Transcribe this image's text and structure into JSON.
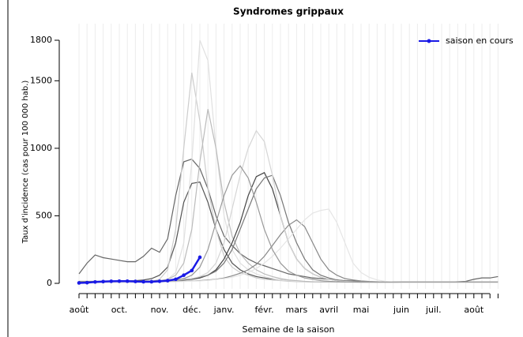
{
  "chart_data": {
    "type": "line",
    "title": "Syndromes grippaux",
    "x_label": "Semaine de la saison",
    "y_label": "Taux d'incidence (cas pour 100 000 hab.)",
    "categories": [
      "août",
      null,
      null,
      null,
      null,
      "oct.",
      null,
      null,
      null,
      null,
      "nov.",
      null,
      null,
      null,
      "déc.",
      null,
      null,
      null,
      "janv.",
      null,
      null,
      null,
      null,
      "févr.",
      null,
      null,
      null,
      "mars",
      null,
      null,
      null,
      "avril",
      null,
      null,
      null,
      "mai",
      null,
      null,
      null,
      null,
      "juin",
      null,
      null,
      null,
      "juil.",
      null,
      null,
      null,
      null,
      "août",
      null,
      null,
      null
    ],
    "ylim": [
      0,
      1800
    ],
    "yticks": [
      0,
      500,
      1000,
      1500,
      1800
    ],
    "grid": true,
    "legend": "top-right",
    "series": [
      {
        "color": "#666666",
        "values": [
          70,
          150,
          210,
          190,
          180,
          170,
          160,
          160,
          200,
          260,
          230,
          330,
          650,
          900,
          920,
          850,
          700,
          500,
          350,
          280,
          220,
          180,
          150,
          130,
          110,
          90,
          70,
          60,
          50,
          40,
          35,
          30,
          25,
          20,
          18,
          15,
          12,
          10,
          10,
          10,
          10,
          10,
          10,
          10,
          10,
          10,
          10,
          12,
          15,
          30,
          40,
          40,
          50
        ]
      },
      {
        "color": "#555555",
        "values": [
          10,
          10,
          12,
          14,
          15,
          16,
          18,
          20,
          25,
          35,
          60,
          120,
          300,
          600,
          740,
          750,
          600,
          400,
          250,
          150,
          100,
          70,
          50,
          40,
          30,
          25,
          20,
          15,
          12,
          10,
          10,
          10,
          10,
          10,
          10,
          8,
          8,
          8,
          8,
          8,
          8,
          8,
          8,
          8,
          8,
          8,
          8,
          8,
          8,
          8,
          8,
          8,
          8
        ]
      },
      {
        "color": "#cccccc",
        "values": [
          5,
          5,
          6,
          6,
          7,
          8,
          9,
          10,
          12,
          15,
          30,
          100,
          400,
          1000,
          1560,
          1200,
          700,
          400,
          200,
          120,
          80,
          60,
          40,
          30,
          25,
          20,
          15,
          12,
          10,
          10,
          10,
          10,
          10,
          10,
          8,
          8,
          8,
          8,
          8,
          8,
          8,
          8,
          8,
          8,
          8,
          8,
          8,
          8,
          8,
          8,
          8,
          8,
          8
        ]
      },
      {
        "color": "#e0e0e0",
        "values": [
          5,
          5,
          5,
          6,
          6,
          7,
          8,
          9,
          10,
          12,
          15,
          30,
          80,
          300,
          900,
          1800,
          1650,
          1000,
          500,
          250,
          150,
          100,
          70,
          50,
          35,
          25,
          20,
          15,
          12,
          10,
          10,
          10,
          10,
          10,
          10,
          8,
          8,
          8,
          8,
          8,
          8,
          8,
          8,
          8,
          8,
          8,
          8,
          8,
          8,
          8,
          8,
          8,
          8
        ]
      },
      {
        "color": "#bbbbbb",
        "values": [
          8,
          8,
          8,
          9,
          10,
          10,
          11,
          12,
          14,
          16,
          20,
          30,
          60,
          150,
          400,
          900,
          1290,
          1000,
          600,
          350,
          220,
          150,
          100,
          70,
          50,
          35,
          25,
          20,
          15,
          12,
          10,
          10,
          10,
          10,
          10,
          10,
          10,
          8,
          8,
          8,
          8,
          8,
          8,
          8,
          8,
          8,
          8,
          8,
          8,
          8,
          8,
          8,
          8
        ]
      },
      {
        "color": "#444444",
        "values": [
          10,
          10,
          10,
          10,
          10,
          11,
          12,
          13,
          14,
          15,
          16,
          18,
          20,
          25,
          30,
          40,
          60,
          100,
          180,
          300,
          450,
          650,
          790,
          820,
          700,
          500,
          300,
          180,
          110,
          70,
          45,
          30,
          20,
          15,
          12,
          10,
          10,
          10,
          10,
          10,
          10,
          10,
          10,
          10,
          10,
          10,
          10,
          10,
          10,
          10,
          10,
          10,
          10
        ]
      },
      {
        "color": "#777777",
        "values": [
          15,
          15,
          15,
          15,
          15,
          15,
          15,
          16,
          17,
          18,
          20,
          22,
          25,
          30,
          35,
          45,
          60,
          90,
          150,
          250,
          400,
          550,
          700,
          780,
          800,
          650,
          450,
          300,
          180,
          100,
          60,
          40,
          25,
          18,
          15,
          12,
          10,
          10,
          10,
          10,
          10,
          10,
          10,
          10,
          10,
          10,
          10,
          10,
          10,
          10,
          10,
          10,
          10
        ]
      },
      {
        "color": "#888888",
        "values": [
          10,
          10,
          10,
          10,
          10,
          10,
          10,
          10,
          11,
          12,
          13,
          14,
          15,
          16,
          18,
          20,
          25,
          30,
          40,
          55,
          75,
          100,
          140,
          200,
          280,
          360,
          430,
          470,
          420,
          300,
          180,
          100,
          60,
          35,
          25,
          18,
          14,
          12,
          10,
          10,
          10,
          10,
          10,
          10,
          10,
          10,
          10,
          10,
          10,
          10,
          10,
          10,
          10
        ]
      },
      {
        "color": "#d5d5d5",
        "values": [
          8,
          8,
          8,
          8,
          8,
          9,
          10,
          11,
          12,
          13,
          15,
          18,
          22,
          28,
          35,
          50,
          80,
          150,
          300,
          550,
          800,
          1000,
          1130,
          1050,
          800,
          500,
          300,
          180,
          110,
          70,
          45,
          30,
          20,
          15,
          12,
          10,
          10,
          10,
          10,
          10,
          10,
          10,
          10,
          10,
          10,
          10,
          10,
          10,
          10,
          10,
          10,
          10,
          10
        ]
      },
      {
        "color": "#e5e5e5",
        "values": [
          5,
          5,
          5,
          5,
          5,
          5,
          6,
          6,
          7,
          8,
          9,
          10,
          12,
          14,
          16,
          18,
          22,
          28,
          35,
          45,
          60,
          80,
          110,
          150,
          200,
          260,
          330,
          400,
          470,
          520,
          540,
          550,
          450,
          300,
          150,
          80,
          45,
          25,
          15,
          10,
          8,
          8,
          8,
          8,
          8,
          8,
          8,
          8,
          8,
          8,
          8,
          8,
          8
        ]
      },
      {
        "color": "#999999",
        "values": [
          12,
          12,
          12,
          12,
          12,
          12,
          13,
          14,
          15,
          16,
          18,
          20,
          25,
          35,
          60,
          120,
          250,
          450,
          650,
          800,
          870,
          780,
          600,
          400,
          250,
          150,
          90,
          60,
          40,
          30,
          20,
          15,
          12,
          10,
          10,
          10,
          10,
          10,
          10,
          10,
          10,
          10,
          10,
          10,
          10,
          10,
          10,
          10,
          10,
          10,
          10,
          10,
          10
        ]
      },
      {
        "name": "saison en cours",
        "color": "#1a1ae6",
        "values": [
          3,
          5,
          10,
          13,
          15,
          16,
          16,
          14,
          12,
          12,
          15,
          20,
          30,
          60,
          95,
          193,
          null,
          null,
          null,
          null,
          null,
          null,
          null,
          null,
          null,
          null,
          null,
          null,
          null,
          null,
          null,
          null,
          null,
          null,
          null,
          null,
          null,
          null,
          null,
          null,
          null,
          null,
          null,
          null,
          null,
          null,
          null,
          null,
          null,
          null,
          null,
          null,
          null
        ]
      }
    ]
  }
}
